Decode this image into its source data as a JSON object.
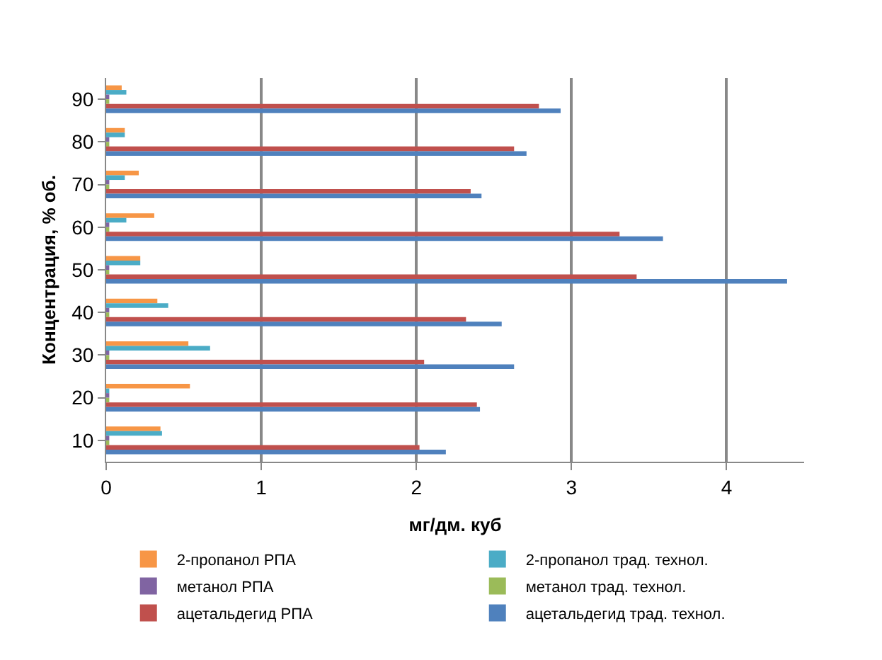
{
  "chart_data": {
    "type": "bar",
    "orientation": "horizontal",
    "xlabel": "мг/дм. куб",
    "ylabel": "Концентрация, % об.",
    "categories": [
      "90",
      "80",
      "70",
      "60",
      "50",
      "40",
      "30",
      "20",
      "10"
    ],
    "series": [
      {
        "name": "2-пропанол РПА",
        "color": "#f79646",
        "values": [
          0.1,
          0.12,
          0.21,
          0.31,
          0.22,
          0.33,
          0.53,
          0.54,
          0.35
        ]
      },
      {
        "name": "2-пропанол трад. технол.",
        "color": "#4bacc6",
        "values": [
          0.13,
          0.12,
          0.12,
          0.13,
          0.22,
          0.4,
          0.67,
          0.02,
          0.36
        ]
      },
      {
        "name": "метанол РПА",
        "color": "#8064a2",
        "values": [
          0.02,
          0.02,
          0.02,
          0.02,
          0.02,
          0.02,
          0.02,
          0.02,
          0.02
        ]
      },
      {
        "name": "метанол трад. технол.",
        "color": "#9bbb59",
        "values": [
          0.02,
          0.02,
          0.02,
          0.02,
          0.02,
          0.02,
          0.02,
          0.02,
          0.02
        ]
      },
      {
        "name": "ацетальдегид РПА",
        "color": "#c0504d",
        "values": [
          2.79,
          2.63,
          2.35,
          3.31,
          3.42,
          2.32,
          2.05,
          2.39,
          2.02
        ]
      },
      {
        "name": "ацетальдегид трад. технол.",
        "color": "#4f81bd",
        "values": [
          2.93,
          2.71,
          2.42,
          3.59,
          4.39,
          2.55,
          2.63,
          2.41,
          2.19
        ]
      }
    ],
    "xlim": [
      0,
      4.5
    ],
    "xticks": [
      0,
      1,
      2,
      3,
      4
    ],
    "grid": "x",
    "legend": "bottom"
  }
}
